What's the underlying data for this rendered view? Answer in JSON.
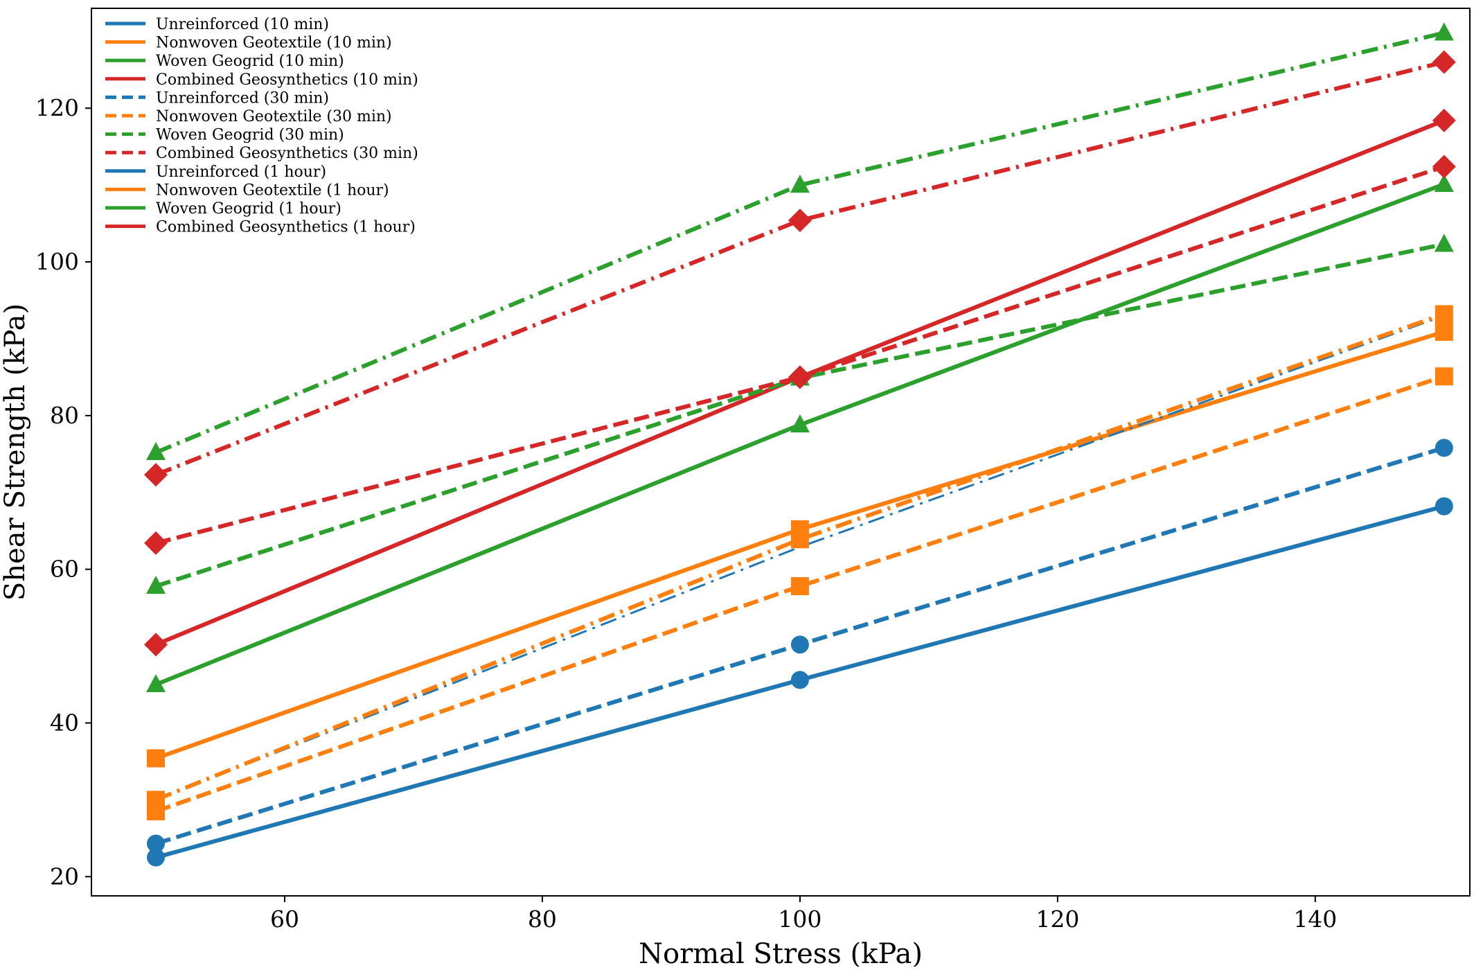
{
  "chart_data": {
    "type": "line",
    "title": "",
    "xlabel": "Normal Stress (kPa)",
    "ylabel": "Shear Strength (kPa)",
    "xlim": [
      45,
      152
    ],
    "ylim": [
      17.5,
      133
    ],
    "xticks": [
      60,
      80,
      100,
      120,
      140
    ],
    "yticks": [
      20,
      40,
      60,
      80,
      100,
      120
    ],
    "x": [
      50,
      100,
      150
    ],
    "grid": false,
    "legend_position": "upper-left",
    "series": [
      {
        "name": "Unreinforced (10 min)",
        "values": [
          22.5,
          45.6,
          68.2
        ],
        "color": "#1f77b4",
        "line_style": "solid",
        "marker": "circle"
      },
      {
        "name": "Nonwoven Geotextile (10 min)",
        "values": [
          35.4,
          65.2,
          90.9
        ],
        "color": "#ff7f0e",
        "line_style": "solid",
        "marker": "square"
      },
      {
        "name": "Woven Geogrid (10 min)",
        "values": [
          45.0,
          78.8,
          110.1
        ],
        "color": "#2ca02c",
        "line_style": "solid",
        "marker": "triangle"
      },
      {
        "name": "Combined Geosynthetics (10 min)",
        "values": [
          50.2,
          85.0,
          118.4
        ],
        "color": "#d62728",
        "line_style": "solid",
        "marker": "diamond"
      },
      {
        "name": "Unreinforced (30 min)",
        "values": [
          24.3,
          50.2,
          75.8
        ],
        "color": "#1f77b4",
        "line_style": "dashed",
        "marker": "circle"
      },
      {
        "name": "Nonwoven Geotextile (30 min)",
        "values": [
          28.5,
          57.8,
          85.1
        ],
        "color": "#ff7f0e",
        "line_style": "dashed",
        "marker": "square"
      },
      {
        "name": "Woven Geogrid (30 min)",
        "values": [
          57.8,
          84.9,
          102.3
        ],
        "color": "#2ca02c",
        "line_style": "dashed",
        "marker": "triangle"
      },
      {
        "name": "Combined Geosynthetics (30 min)",
        "values": [
          63.4,
          85.0,
          112.4
        ],
        "color": "#d62728",
        "line_style": "dashed",
        "marker": "diamond"
      },
      {
        "name": "Unreinforced (1 hour)",
        "values": [
          30.0,
          62.9,
          93.0
        ],
        "color": "#1f77b4",
        "line_style": "dashdot",
        "marker": "none"
      },
      {
        "name": "Nonwoven Geotextile (1 hour)",
        "values": [
          30.0,
          63.9,
          93.2
        ],
        "color": "#ff7f0e",
        "line_style": "dashdot",
        "marker": "square"
      },
      {
        "name": "Woven Geogrid (1 hour)",
        "values": [
          75.2,
          110.0,
          129.8
        ],
        "color": "#2ca02c",
        "line_style": "dashdot",
        "marker": "triangle"
      },
      {
        "name": "Combined Geosynthetics (1 hour)",
        "values": [
          72.3,
          105.4,
          126.0
        ],
        "color": "#d62728",
        "line_style": "dashdot",
        "marker": "diamond"
      }
    ]
  }
}
